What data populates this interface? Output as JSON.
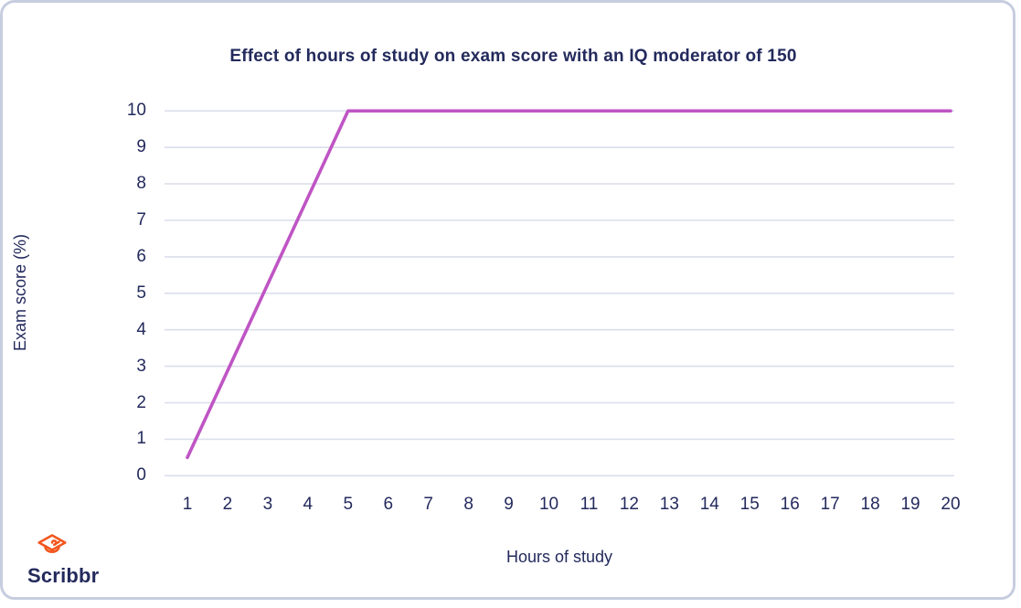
{
  "chart_data": {
    "type": "line",
    "title": "Effect of hours of study on exam score with an IQ moderator of 150",
    "xlabel": "Hours of study",
    "ylabel": "Exam score (%)",
    "x_ticks": [
      1,
      2,
      3,
      4,
      5,
      6,
      7,
      8,
      9,
      10,
      11,
      12,
      13,
      14,
      15,
      16,
      17,
      18,
      19,
      20
    ],
    "y_ticks": [
      0,
      1,
      2,
      3,
      4,
      5,
      6,
      7,
      8,
      9,
      10
    ],
    "xlim": [
      1,
      20
    ],
    "ylim": [
      0,
      10
    ],
    "grid": "horizontal-only",
    "legend": "none",
    "series": [
      {
        "name": "exam-score-line",
        "color": "#bf55c4",
        "points": [
          [
            1,
            0.5
          ],
          [
            5,
            10
          ],
          [
            20,
            10
          ]
        ]
      }
    ],
    "colors": {
      "text": "#232a5c",
      "gridline": "#dbdfec",
      "line": "#bf55c4",
      "card_border": "#c6cddf",
      "background": "#ffffff"
    }
  },
  "logo": {
    "brand": "Scribbr",
    "icon": "graduation-cap-icon",
    "icon_color": "#f2561d",
    "text_color": "#232a5c"
  }
}
